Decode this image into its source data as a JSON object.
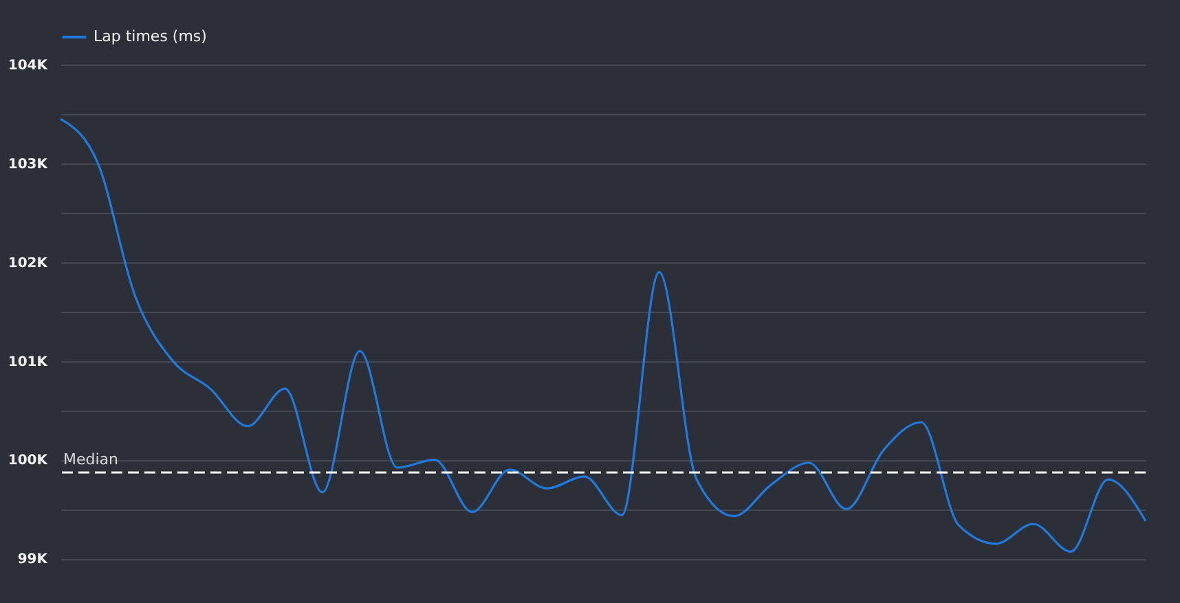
{
  "chart_data": {
    "type": "line",
    "categories": [
      null,
      null,
      null,
      null,
      null,
      null,
      null,
      null,
      null,
      null,
      null,
      null,
      null,
      null,
      null,
      null,
      null,
      null,
      null,
      null,
      null,
      null,
      null,
      null,
      null,
      null,
      null,
      null,
      null,
      null
    ],
    "series": [
      {
        "name": "Lap times (ms)",
        "color": "#1f7ae0",
        "values": [
          103450,
          103000,
          101650,
          101000,
          100720,
          100340,
          100720,
          99670,
          101100,
          99920,
          100000,
          99470,
          99900,
          99710,
          99830,
          99440,
          101900,
          99800,
          99430,
          99750,
          99970,
          99500,
          100100,
          100380,
          99340,
          99150,
          99350,
          99070,
          99800,
          99380
        ]
      }
    ],
    "ylim": [
      98550,
      104000
    ],
    "yticks": [
      {
        "value": 99000,
        "label": "99K"
      },
      {
        "value": 99500,
        "label": null
      },
      {
        "value": 100000,
        "label": "100K"
      },
      {
        "value": 100500,
        "label": null
      },
      {
        "value": 101000,
        "label": "101K"
      },
      {
        "value": 101500,
        "label": null
      },
      {
        "value": 102000,
        "label": "102K"
      },
      {
        "value": 102500,
        "label": null
      },
      {
        "value": 103000,
        "label": "103K"
      },
      {
        "value": 103500,
        "label": null
      },
      {
        "value": 104000,
        "label": "104K"
      }
    ],
    "grid": "y",
    "legend": "top left",
    "tick_labels": "y",
    "line_style": "solid",
    "ref_lines": [
      {
        "axis": "y",
        "value": 99870,
        "label": "Median",
        "color": "#ffffff",
        "line_style": "dashed"
      }
    ]
  }
}
